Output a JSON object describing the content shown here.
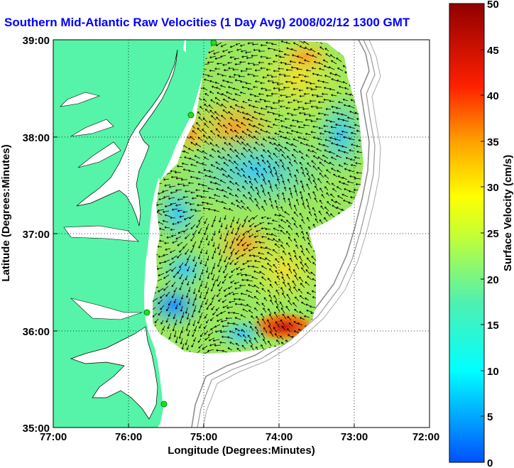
{
  "title": "Southern Mid-Atlantic Raw Velocities (1 Day Avg) 2008/02/12 1300 GMT",
  "xlabel": "Longitude (Degrees:Minutes)",
  "ylabel": "Latitude (Degrees:Minutes)",
  "colorbar_label": "Surface Velocity (cm/s)",
  "x_ticks": [
    "77:00",
    "76:00",
    "75:00",
    "74:00",
    "73:00",
    "72:00"
  ],
  "y_ticks": [
    "39:00",
    "38:00",
    "37:00",
    "36:00",
    "35:00"
  ],
  "colorbar_ticks": [
    "0",
    "5",
    "10",
    "15",
    "20",
    "25",
    "30",
    "35",
    "40",
    "45",
    "50"
  ],
  "colors": {
    "land": "#55f4a8",
    "title": "#0000ff",
    "station": "#22dd22"
  },
  "map_extent": {
    "lon": [
      -77,
      -72
    ],
    "lat": [
      35,
      39
    ]
  },
  "colorbar_range": [
    0,
    50
  ]
}
